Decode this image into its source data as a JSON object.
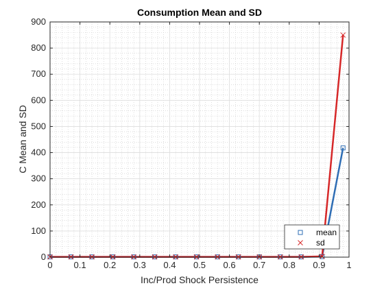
{
  "chart_data": {
    "type": "line",
    "title": "Consumption Mean and SD",
    "xlabel": "Inc/Prod Shock Persistence",
    "ylabel": "C Mean and SD",
    "xlim": [
      0,
      1
    ],
    "ylim": [
      0,
      900
    ],
    "xticks": [
      0,
      0.1,
      0.2,
      0.3,
      0.4,
      0.5,
      0.6,
      0.7,
      0.8,
      0.9,
      1
    ],
    "xtick_labels": [
      "0",
      "0.1",
      "0.2",
      "0.3",
      "0.4",
      "0.5",
      "0.6",
      "0.7",
      "0.8",
      "0.9",
      "1"
    ],
    "yticks": [
      0,
      100,
      200,
      300,
      400,
      500,
      600,
      700,
      800,
      900
    ],
    "ytick_labels": [
      "0",
      "100",
      "200",
      "300",
      "400",
      "500",
      "600",
      "700",
      "800",
      "900"
    ],
    "grid": true,
    "minor_grid": true,
    "legend_position": "bottom-right",
    "x": [
      0,
      0.07,
      0.14,
      0.21,
      0.28,
      0.35,
      0.42,
      0.49,
      0.56,
      0.63,
      0.7,
      0.77,
      0.84,
      0.91,
      0.98
    ],
    "series": [
      {
        "name": "mean",
        "marker": "square",
        "color": "#2e6db4",
        "values": [
          1,
          1,
          1,
          1,
          1,
          1,
          1,
          1,
          1,
          1,
          1,
          1,
          1,
          2,
          418
        ]
      },
      {
        "name": "sd",
        "marker": "x",
        "color": "#d62728",
        "values": [
          1,
          1,
          1,
          1,
          1,
          1,
          1,
          1,
          1,
          1,
          1,
          1,
          1,
          3,
          850
        ]
      }
    ]
  }
}
